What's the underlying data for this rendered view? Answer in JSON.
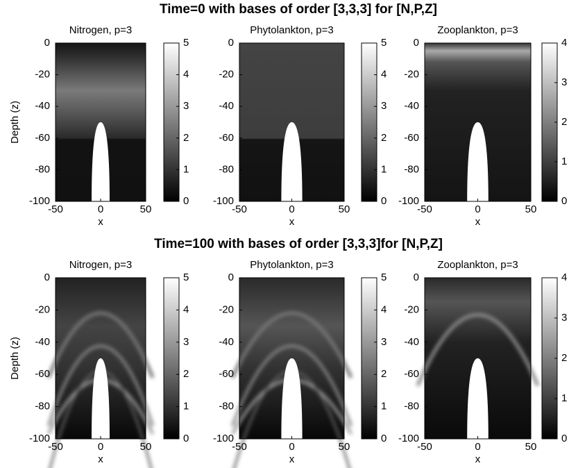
{
  "figure_titles": [
    "Time=0 with bases of order [3,3,3] for [N,P,Z]",
    "Time=100 with bases of order [3,3,3]for [N,P,Z]"
  ],
  "chart_data": [
    {
      "type": "heatmap",
      "title": "Nitrogen, p=3",
      "xlabel": "x",
      "ylabel": "Depth (z)",
      "xlim": [
        -50,
        50
      ],
      "ylim": [
        -100,
        0
      ],
      "xticks": [
        -50,
        0,
        50
      ],
      "yticks": [
        -100,
        -80,
        -60,
        -40,
        -20,
        0
      ],
      "clim": [
        0,
        5
      ],
      "cticks": [
        0,
        1,
        2,
        3,
        4,
        5
      ]
    },
    {
      "type": "heatmap",
      "title": "Phytolankton, p=3",
      "xlabel": "x",
      "xlim": [
        -50,
        50
      ],
      "ylim": [
        -100,
        0
      ],
      "xticks": [
        -50,
        0,
        50
      ],
      "yticks": [
        -100,
        -80,
        -60,
        -40,
        -20,
        0
      ],
      "clim": [
        0,
        5
      ],
      "cticks": [
        0,
        1,
        2,
        3,
        4,
        5
      ]
    },
    {
      "type": "heatmap",
      "title": "Zooplankton, p=3",
      "xlabel": "x",
      "xlim": [
        -50,
        50
      ],
      "ylim": [
        -100,
        0
      ],
      "xticks": [
        -50,
        0,
        50
      ],
      "yticks": [
        -100,
        -80,
        -60,
        -40,
        -20,
        0
      ],
      "clim": [
        0,
        4
      ],
      "cticks": [
        0,
        1,
        2,
        3,
        4
      ]
    },
    {
      "type": "heatmap",
      "title": "Nitrogen, p=3",
      "xlabel": "x",
      "ylabel": "Depth (z)",
      "xlim": [
        -50,
        50
      ],
      "ylim": [
        -100,
        0
      ],
      "xticks": [
        -50,
        0,
        50
      ],
      "yticks": [
        -100,
        -80,
        -60,
        -40,
        -20,
        0
      ],
      "clim": [
        0,
        5
      ],
      "cticks": [
        0,
        1,
        2,
        3,
        4,
        5
      ]
    },
    {
      "type": "heatmap",
      "title": "Phytolankton, p=3",
      "xlabel": "x",
      "xlim": [
        -50,
        50
      ],
      "ylim": [
        -100,
        0
      ],
      "xticks": [
        -50,
        0,
        50
      ],
      "yticks": [
        -100,
        -80,
        -60,
        -40,
        -20,
        0
      ],
      "clim": [
        0,
        5
      ],
      "cticks": [
        0,
        1,
        2,
        3,
        4,
        5
      ]
    },
    {
      "type": "heatmap",
      "title": "Zooplankton, p=3",
      "xlabel": "x",
      "xlim": [
        -50,
        50
      ],
      "ylim": [
        -100,
        0
      ],
      "xticks": [
        -50,
        0,
        50
      ],
      "yticks": [
        -100,
        -80,
        -60,
        -40,
        -20,
        0
      ],
      "clim": [
        0,
        4
      ],
      "cticks": [
        0,
        1,
        2,
        3,
        4
      ]
    }
  ]
}
